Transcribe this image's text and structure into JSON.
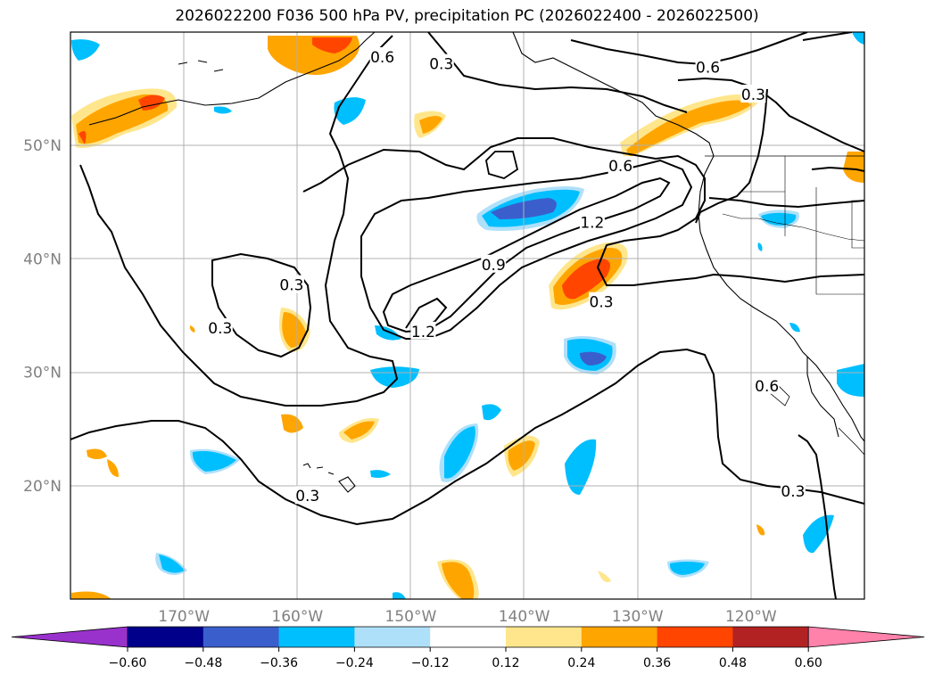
{
  "title": "2026022200 F036 500 hPa PV, precipitation PC (2026022400 - 2026022500)",
  "chart_data": {
    "type": "contour-map",
    "projection": "lat-lon",
    "lon_range": [
      -180,
      -110
    ],
    "lat_range": [
      10,
      60
    ],
    "grid": true,
    "lat_ticks": [
      {
        "label": "50°N",
        "value": 50
      },
      {
        "label": "40°N",
        "value": 40
      },
      {
        "label": "30°N",
        "value": 30
      },
      {
        "label": "20°N",
        "value": 20
      }
    ],
    "lon_ticks": [
      {
        "label": "170°W",
        "value": -170
      },
      {
        "label": "160°W",
        "value": -160
      },
      {
        "label": "150°W",
        "value": -150
      },
      {
        "label": "140°W",
        "value": -140
      },
      {
        "label": "130°W",
        "value": -130
      },
      {
        "label": "120°W",
        "value": -120
      }
    ],
    "pv_contour_labels": [
      {
        "text": "0.6",
        "lon": -152.5,
        "lat": 57.8
      },
      {
        "text": "0.3",
        "lon": -147.3,
        "lat": 57.2
      },
      {
        "text": "0.6",
        "lon": -123.8,
        "lat": 56.9
      },
      {
        "text": "0.3",
        "lon": -119.8,
        "lat": 54.5
      },
      {
        "text": "0.6",
        "lon": -131.5,
        "lat": 48.2
      },
      {
        "text": "1.2",
        "lon": -134.0,
        "lat": 43.2
      },
      {
        "text": "0.9",
        "lon": -142.7,
        "lat": 39.5
      },
      {
        "text": "0.3",
        "lon": -133.2,
        "lat": 36.2
      },
      {
        "text": "0.3",
        "lon": -160.5,
        "lat": 37.7
      },
      {
        "text": "0.3",
        "lon": -166.8,
        "lat": 33.9
      },
      {
        "text": "1.2",
        "lon": -148.9,
        "lat": 33.6
      },
      {
        "text": "0.6",
        "lon": -118.6,
        "lat": 28.8
      },
      {
        "text": "0.3",
        "lon": -159.1,
        "lat": 19.1
      },
      {
        "text": "0.3",
        "lon": -116.3,
        "lat": 19.5
      }
    ],
    "colorbar": {
      "ticks": [
        "−0.60",
        "−0.48",
        "−0.36",
        "−0.24",
        "−0.12",
        "0.12",
        "0.24",
        "0.36",
        "0.48",
        "0.60"
      ],
      "colors": [
        "#9932cc",
        "#00008b",
        "#3a5fcd",
        "#00bfff",
        "#afe0fa",
        "#ffffff",
        "#ffe68c",
        "#ffa500",
        "#ff4500",
        "#b22222",
        "#ff82ab"
      ],
      "extend": "both"
    }
  }
}
